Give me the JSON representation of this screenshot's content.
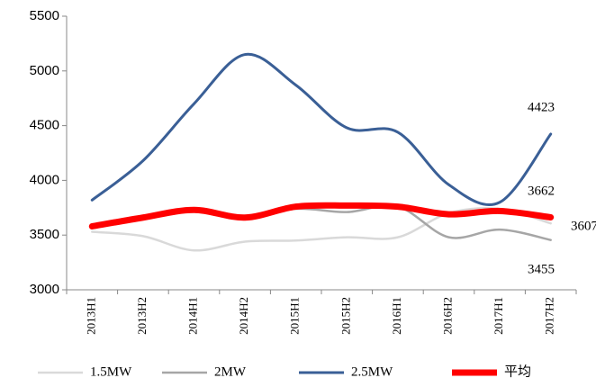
{
  "chart_data": {
    "type": "line",
    "categories": [
      "2013H1",
      "2013H2",
      "2014H1",
      "2014H2",
      "2015H1",
      "2015H2",
      "2016H1",
      "2016H2",
      "2017H1",
      "2017H2"
    ],
    "series": [
      {
        "name": "1.5MW",
        "color": "#d9d9d9",
        "values": [
          3530,
          3490,
          3360,
          3440,
          3450,
          3480,
          3480,
          3700,
          3740,
          3607
        ]
      },
      {
        "name": "2MW",
        "color": "#a6a6a6",
        "values": [
          3580,
          3650,
          3720,
          3660,
          3740,
          3710,
          3760,
          3480,
          3550,
          3455
        ]
      },
      {
        "name": "2.5MW",
        "color": "#3a5f96",
        "values": [
          3820,
          4180,
          4700,
          5150,
          4870,
          4480,
          4440,
          3960,
          3800,
          4423
        ]
      },
      {
        "name": "平均",
        "color": "#ff0000",
        "values": [
          3580,
          3660,
          3730,
          3660,
          3760,
          3770,
          3760,
          3690,
          3720,
          3662
        ]
      }
    ],
    "ylim": [
      3000,
      5500
    ],
    "yticks": [
      3000,
      3500,
      4000,
      4500,
      5000,
      5500
    ]
  }
}
